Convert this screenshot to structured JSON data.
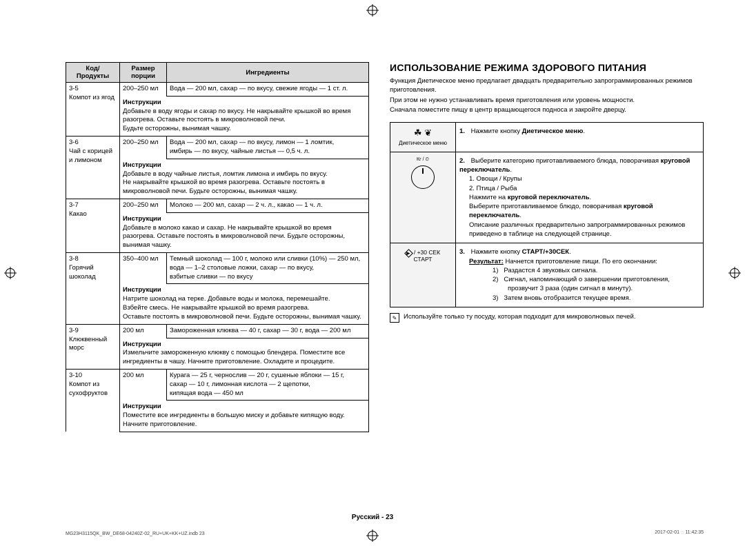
{
  "table": {
    "headers": {
      "code": "Код/\nПродукты",
      "size": "Размер\nпорции",
      "ingredients": "Ингредиенты"
    },
    "instr_label": "Инструкции",
    "rows": [
      {
        "code": "3-5",
        "name": "Компот из ягод",
        "size": "200–250 мл",
        "ingredients": "Вода — 200 мл, сахар — по вкусу, свежие ягоды — 1 ст. л.",
        "instructions": "Добавьте в воду ягоды и сахар по вкусу. Не накрывайте крышкой во время разогрева. Оставьте постоять в микроволновой печи.\nБудьте осторожны, вынимая чашку."
      },
      {
        "code": "3-6",
        "name": "Чай с корицей и лимоном",
        "size": "200–250 мл",
        "ingredients": "Вода — 200 мл, сахар — по вкусу, лимон — 1 ломтик,\nимбирь — по вкусу, чайные листья — 0,5 ч. л.",
        "instructions": "Добавьте в воду чайные листья, ломтик лимона и имбирь по вкусу.\nНе накрывайте крышкой во время разогрева. Оставьте постоять в микроволновой печи. Будьте осторожны, вынимая чашку."
      },
      {
        "code": "3-7",
        "name": "Какао",
        "size": "200–250 мл",
        "ingredients": "Молоко — 200 мл, сахар — 2 ч. л., какао — 1 ч. л.",
        "instructions": "Добавьте в молоко какао и сахар. Не накрывайте крышкой во время разогрева. Оставьте постоять в микроволновой печи. Будьте осторожны, вынимая чашку."
      },
      {
        "code": "3-8",
        "name": "Горячий шоколад",
        "size": "350–400 мл",
        "ingredients": "Темный шоколад — 100 г, молоко или сливки (10%) — 250 мл,\nвода — 1–2 столовые ложки, сахар — по вкусу,\nвзбитые сливки — по вкусу",
        "instructions": "Натрите шоколад на терке. Добавьте воды и молока, перемешайте.\nВзбейте смесь. Не накрывайте крышкой во время разогрева.\nОставьте постоять в микроволновой печи. Будьте осторожны, вынимая чашку."
      },
      {
        "code": "3-9",
        "name": "Клюквенный морс",
        "size": "200 мл",
        "ingredients": "Замороженная клюква — 40 г, сахар — 30 г, вода — 200 мл",
        "instructions": "Измельчите замороженную клюкву с помощью блендера. Поместите все ингредиенты в чашу. Начните приготовление. Охладите и процедите."
      },
      {
        "code": "3-10",
        "name": "Компот из сухофруктов",
        "size": "200 мл",
        "ingredients": "Курага — 25 г, чернослив — 20 г, сушеные яблоки — 15 г,\nсахар — 10 г, лимонная кислота — 2 щепотки,\nкипящая вода — 450 мл",
        "instructions": "Поместите все ингредиенты в большую миску и добавьте кипящую воду. Начните приготовление."
      }
    ]
  },
  "right": {
    "title": "ИСПОЛЬЗОВАНИЕ РЕЖИМА ЗДОРОВОГО ПИТАНИЯ",
    "intro": [
      "Функция Диетическое меню предлагает двадцать предварительно запрограммированных режимов приготовления.",
      "При этом не нужно устанавливать время приготовления или уровень мощности.",
      "Сначала поместите пищу в центр вращающегося подноса и закройте дверцу."
    ],
    "steps": {
      "s1_icon_label": "Диетическое меню",
      "s1_text_a": "Нажмите кнопку ",
      "s1_text_b": "Диетическое меню",
      "s1_text_c": ".",
      "s2_line1a": "Выберите категорию приготавливаемого блюда, поворачивая ",
      "s2_line1b": "круговой переключатель",
      "s2_line1c": ".",
      "s2_opt1": "1. Овощи / Крупы",
      "s2_opt2": "2. Птица / Рыба",
      "s2_line2a": "Нажмите на ",
      "s2_line2b": "круговой переключатель",
      "s2_line2c": ".",
      "s2_line3a": "Выберите приготавливаемое блюдо, поворачивая ",
      "s2_line3b": "круговой переключатель",
      "s2_line3c": ".",
      "s2_line4": "Описание различных предварительно запрограммированных режимов приведено в таблице на следующей странице.",
      "s3_icon1": "/ +30 СЕК",
      "s3_icon2": "СТАРТ",
      "s3_line1a": "Нажмите кнопку ",
      "s3_line1b": "СТАРТ/+30СЕК",
      "s3_line1c": ".",
      "s3_res_label": "Результат:",
      "s3_res_text": " Начнется приготовление пищи. По его окончании:",
      "s3_li1": "Раздастся 4 звуковых сигнала.",
      "s3_li2": "Сигнал, напоминающий о завершении приготовления, прозвучит 3 раза (один сигнал в минуту).",
      "s3_li3": "Затем вновь отобразится текущее время."
    },
    "note": "Используйте только ту посуду, которая подходит для микроволновых печей."
  },
  "footer": {
    "lang": "Русский",
    "page": "23",
    "meta_left": "MG23H3115QK_BW_DE68-04240Z-02_RU+UK+KK+UZ.indb   23",
    "meta_right": "2017-02-01   ᜀ 11:42:35"
  }
}
